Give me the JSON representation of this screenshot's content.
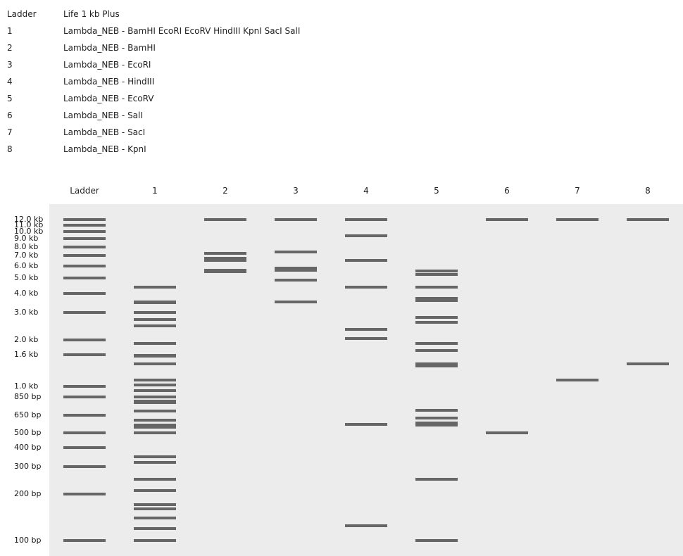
{
  "legend": [
    {
      "key": "Ladder",
      "value": "Life 1 kb Plus"
    },
    {
      "key": "1",
      "value": "Lambda_NEB - BamHI EcoRI EcoRV HindIII KpnI SacI SalI"
    },
    {
      "key": "2",
      "value": "Lambda_NEB - BamHI"
    },
    {
      "key": "3",
      "value": "Lambda_NEB - EcoRI"
    },
    {
      "key": "4",
      "value": "Lambda_NEB - HindIII"
    },
    {
      "key": "5",
      "value": "Lambda_NEB - EcoRV"
    },
    {
      "key": "6",
      "value": "Lambda_NEB - SalI"
    },
    {
      "key": "7",
      "value": "Lambda_NEB - SacI"
    },
    {
      "key": "8",
      "value": "Lambda_NEB - KpnI"
    }
  ],
  "lanes": [
    "Ladder",
    "1",
    "2",
    "3",
    "4",
    "5",
    "6",
    "7",
    "8"
  ],
  "ladder_sizes": [
    {
      "label": "12.0 kb",
      "bp": 12000
    },
    {
      "label": "11.0 kb",
      "bp": 11000
    },
    {
      "label": "10.0 kb",
      "bp": 10000
    },
    {
      "label": "9.0 kb",
      "bp": 9000
    },
    {
      "label": "8.0 kb",
      "bp": 8000
    },
    {
      "label": "7.0 kb",
      "bp": 7000
    },
    {
      "label": "6.0 kb",
      "bp": 6000
    },
    {
      "label": "5.0 kb",
      "bp": 5000
    },
    {
      "label": "4.0 kb",
      "bp": 4000
    },
    {
      "label": "3.0 kb",
      "bp": 3000
    },
    {
      "label": "2.0 kb",
      "bp": 2000
    },
    {
      "label": "1.6 kb",
      "bp": 1600
    },
    {
      "label": "1.0 kb",
      "bp": 1000
    },
    {
      "label": "850 bp",
      "bp": 850
    },
    {
      "label": "650 bp",
      "bp": 650
    },
    {
      "label": "500 bp",
      "bp": 500
    },
    {
      "label": "400 bp",
      "bp": 400
    },
    {
      "label": "300 bp",
      "bp": 300
    },
    {
      "label": "200 bp",
      "bp": 200
    },
    {
      "label": "100 bp",
      "bp": 100
    }
  ],
  "lane_bands_bp": [
    [
      12000,
      11000,
      10000,
      9000,
      8000,
      7000,
      6000,
      5000,
      4000,
      3000,
      2000,
      1600,
      1000,
      850,
      650,
      500,
      400,
      300,
      200,
      100
    ],
    [
      4361,
      3530,
      3480,
      3010,
      2700,
      2450,
      1900,
      1590,
      1570,
      1400,
      1100,
      1020,
      940,
      850,
      800,
      780,
      690,
      600,
      560,
      540,
      500,
      350,
      320,
      250,
      210,
      170,
      160,
      140,
      120,
      100
    ],
    [
      12000,
      7233,
      6527,
      6770,
      5626,
      5505
    ],
    [
      12000,
      7421,
      5804,
      5643,
      4878,
      3530
    ],
    [
      12000,
      9416,
      6557,
      4361,
      2322,
      2027,
      564,
      125
    ],
    [
      5600,
      5300,
      4400,
      3700,
      3600,
      2800,
      2600,
      1900,
      1700,
      1400,
      1350,
      700,
      620,
      580,
      560,
      250,
      100
    ],
    [
      12000,
      500
    ],
    [
      12000,
      1100
    ],
    [
      12000,
      1400
    ]
  ]
}
